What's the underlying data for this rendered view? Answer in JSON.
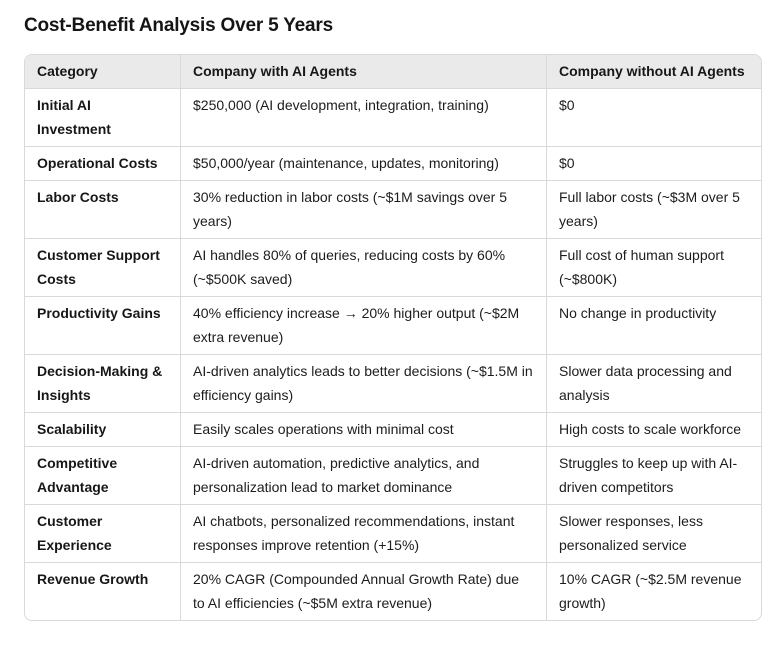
{
  "page_title": "Cost-Benefit Analysis Over 5 Years",
  "colors": {
    "header_background": "#eaeaea",
    "border": "#d9d9d9",
    "text": "#1c1c1c",
    "page_background": "#ffffff"
  },
  "table": {
    "columns": [
      "Category",
      "Company with AI Agents",
      "Company without AI Agents"
    ],
    "rows": [
      {
        "category": "Initial AI Investment",
        "with_ai": "$250,000 (AI development, integration, training)",
        "without_ai": "$0"
      },
      {
        "category": "Operational Costs",
        "with_ai": "$50,000/year (maintenance, updates, monitoring)",
        "without_ai": "$0"
      },
      {
        "category": "Labor Costs",
        "with_ai": "30% reduction in labor costs (~$1M savings over 5 years)",
        "without_ai": "Full labor costs (~$3M over 5 years)"
      },
      {
        "category": "Customer Support Costs",
        "with_ai": "AI handles 80% of queries, reducing costs by 60% (~$500K saved)",
        "without_ai": "Full cost of human support (~$800K)"
      },
      {
        "category": "Productivity Gains",
        "with_ai": "40% efficiency increase → 20% higher output (~$2M extra revenue)",
        "without_ai": "No change in productivity"
      },
      {
        "category": "Decision-Making & Insights",
        "with_ai": "AI-driven analytics leads to better decisions (~$1.5M in efficiency gains)",
        "without_ai": "Slower data processing and analysis"
      },
      {
        "category": "Scalability",
        "with_ai": "Easily scales operations with minimal cost",
        "without_ai": "High costs to scale workforce"
      },
      {
        "category": "Competitive Advantage",
        "with_ai": "AI-driven automation, predictive analytics, and personalization lead to market dominance",
        "without_ai": "Struggles to keep up with AI-driven competitors"
      },
      {
        "category": "Customer Experience",
        "with_ai": "AI chatbots, personalized recommendations, instant responses improve retention (+15%)",
        "without_ai": "Slower responses, less personalized service"
      },
      {
        "category": "Revenue Growth",
        "with_ai": "20% CAGR (Compounded Annual Growth Rate) due to AI efficiencies (~$5M extra revenue)",
        "without_ai": "10% CAGR (~$2.5M revenue growth)"
      }
    ]
  }
}
